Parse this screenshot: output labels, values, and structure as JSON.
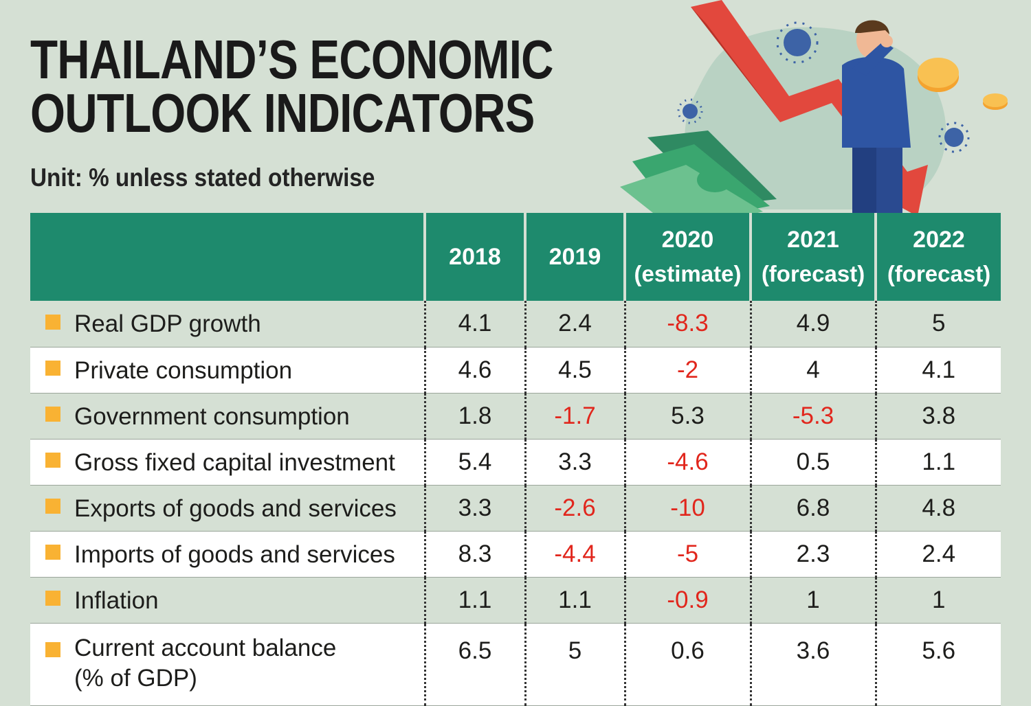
{
  "title_line1": "THAILAND’S ECONOMIC",
  "title_line2": "OUTLOOK INDICATORS",
  "subtitle": "Unit: % unless stated otherwise",
  "colors": {
    "header_bg": "#1e8a6d",
    "negative": "#e1261c",
    "bullet": "#f9b233",
    "page_bg": "#d5e0d4"
  },
  "chart_data": {
    "type": "table",
    "title": "THAILAND’S ECONOMIC OUTLOOK INDICATORS",
    "unit": "Unit: % unless stated otherwise",
    "columns": [
      {
        "year": "2018",
        "note": ""
      },
      {
        "year": "2019",
        "note": ""
      },
      {
        "year": "2020",
        "note": "(estimate)"
      },
      {
        "year": "2021",
        "note": "(forecast)"
      },
      {
        "year": "2022",
        "note": "(forecast)"
      }
    ],
    "rows": [
      {
        "label": "Real GDP growth",
        "values": [
          "4.1",
          "2.4",
          "-8.3",
          "4.9",
          "5"
        ]
      },
      {
        "label": "Private consumption",
        "values": [
          "4.6",
          "4.5",
          "-2",
          "4",
          "4.1"
        ]
      },
      {
        "label": "Government consumption",
        "values": [
          "1.8",
          "-1.7",
          "5.3",
          "-5.3",
          "3.8"
        ]
      },
      {
        "label": "Gross fixed capital investment",
        "values": [
          "5.4",
          "3.3",
          "-4.6",
          "0.5",
          "1.1"
        ]
      },
      {
        "label": "Exports of goods and services",
        "values": [
          "3.3",
          "-2.6",
          "-10",
          "6.8",
          "4.8"
        ]
      },
      {
        "label": "Imports of goods and services",
        "values": [
          "8.3",
          "-4.4",
          "-5",
          "2.3",
          "2.4"
        ]
      },
      {
        "label": "Inflation",
        "values": [
          "1.1",
          "1.1",
          "-0.9",
          "1",
          "1"
        ]
      },
      {
        "label": "Current account balance",
        "label_line2": "(% of GDP)",
        "values": [
          "6.5",
          "5",
          "0.6",
          "3.6",
          "5.6"
        ]
      }
    ]
  }
}
